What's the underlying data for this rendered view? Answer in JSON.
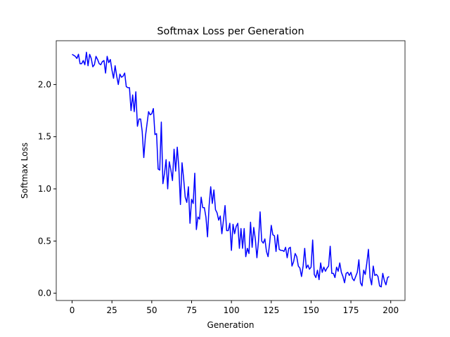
{
  "chart_data": {
    "type": "line",
    "title": "Softmax Loss per Generation",
    "x_label": "Generation",
    "y_label": "Softmax Loss",
    "x": [
      0,
      1,
      2,
      3,
      4,
      5,
      6,
      7,
      8,
      9,
      10,
      11,
      12,
      13,
      14,
      15,
      16,
      17,
      18,
      19,
      20,
      21,
      22,
      23,
      24,
      25,
      26,
      27,
      28,
      29,
      30,
      31,
      32,
      33,
      34,
      35,
      36,
      37,
      38,
      39,
      40,
      41,
      42,
      43,
      44,
      45,
      46,
      47,
      48,
      49,
      50,
      51,
      52,
      53,
      54,
      55,
      56,
      57,
      58,
      59,
      60,
      61,
      62,
      63,
      64,
      65,
      66,
      67,
      68,
      69,
      70,
      71,
      72,
      73,
      74,
      75,
      76,
      77,
      78,
      79,
      80,
      81,
      82,
      83,
      84,
      85,
      86,
      87,
      88,
      89,
      90,
      91,
      92,
      93,
      94,
      95,
      96,
      97,
      98,
      99,
      100,
      101,
      102,
      103,
      104,
      105,
      106,
      107,
      108,
      109,
      110,
      111,
      112,
      113,
      114,
      115,
      116,
      117,
      118,
      119,
      120,
      121,
      122,
      123,
      124,
      125,
      126,
      127,
      128,
      129,
      130,
      131,
      132,
      133,
      134,
      135,
      136,
      137,
      138,
      139,
      140,
      141,
      142,
      143,
      144,
      145,
      146,
      147,
      148,
      149,
      150,
      151,
      152,
      153,
      154,
      155,
      156,
      157,
      158,
      159,
      160,
      161,
      162,
      163,
      164,
      165,
      166,
      167,
      168,
      169,
      170,
      171,
      172,
      173,
      174,
      175,
      176,
      177,
      178,
      179,
      180,
      181,
      182,
      183,
      184,
      185,
      186,
      187,
      188,
      189,
      190,
      191,
      192,
      193,
      194,
      195,
      196,
      197,
      198,
      199
    ],
    "series": [
      {
        "name": "Softmax Loss",
        "color": "#0000ff",
        "values": [
          2.29,
          2.28,
          2.27,
          2.25,
          2.29,
          2.2,
          2.2,
          2.23,
          2.19,
          2.31,
          2.18,
          2.29,
          2.25,
          2.17,
          2.19,
          2.27,
          2.24,
          2.2,
          2.19,
          2.22,
          2.23,
          2.11,
          2.27,
          2.21,
          2.24,
          2.14,
          2.06,
          2.18,
          2.08,
          2.0,
          2.1,
          2.07,
          2.08,
          2.11,
          1.98,
          1.97,
          1.97,
          1.75,
          1.9,
          1.74,
          1.93,
          1.6,
          1.67,
          1.67,
          1.55,
          1.3,
          1.5,
          1.62,
          1.74,
          1.71,
          1.72,
          1.77,
          1.52,
          1.53,
          1.19,
          1.18,
          1.64,
          1.05,
          1.15,
          1.28,
          1.0,
          1.26,
          1.18,
          1.08,
          1.38,
          1.17,
          1.4,
          1.2,
          0.85,
          1.25,
          1.1,
          0.92,
          0.87,
          1.02,
          0.67,
          0.9,
          0.86,
          1.15,
          0.61,
          0.73,
          0.71,
          0.92,
          0.82,
          0.82,
          0.73,
          0.54,
          0.84,
          1.02,
          0.86,
          0.99,
          0.8,
          0.77,
          0.7,
          0.74,
          0.57,
          0.7,
          0.84,
          0.6,
          0.6,
          0.67,
          0.41,
          0.66,
          0.57,
          0.64,
          0.67,
          0.43,
          0.62,
          0.43,
          0.62,
          0.35,
          0.43,
          0.38,
          0.68,
          0.44,
          0.63,
          0.52,
          0.34,
          0.5,
          0.78,
          0.5,
          0.48,
          0.52,
          0.4,
          0.35,
          0.48,
          0.65,
          0.56,
          0.55,
          0.4,
          0.56,
          0.42,
          0.41,
          0.41,
          0.4,
          0.44,
          0.34,
          0.43,
          0.44,
          0.26,
          0.3,
          0.38,
          0.35,
          0.26,
          0.24,
          0.16,
          0.26,
          0.43,
          0.24,
          0.27,
          0.23,
          0.25,
          0.51,
          0.18,
          0.15,
          0.22,
          0.13,
          0.29,
          0.2,
          0.25,
          0.21,
          0.24,
          0.26,
          0.45,
          0.19,
          0.19,
          0.15,
          0.25,
          0.21,
          0.29,
          0.2,
          0.16,
          0.1,
          0.19,
          0.2,
          0.17,
          0.2,
          0.14,
          0.12,
          0.16,
          0.2,
          0.32,
          0.1,
          0.07,
          0.22,
          0.18,
          0.29,
          0.42,
          0.15,
          0.08,
          0.26,
          0.17,
          0.18,
          0.16,
          0.07,
          0.06,
          0.19,
          0.12,
          0.08,
          0.15,
          0.16
        ]
      }
    ],
    "xlim": [
      -9.95,
      208.95
    ],
    "ylim": [
      -0.07,
      2.42
    ],
    "xticks": [
      0,
      25,
      50,
      75,
      100,
      125,
      150,
      175,
      200
    ],
    "yticks": [
      {
        "value": 0,
        "label": "0.0"
      },
      0.5,
      {
        "value": 1,
        "label": "1.0"
      },
      1.5,
      {
        "value": 2,
        "label": "2.0"
      }
    ],
    "grid": false
  }
}
